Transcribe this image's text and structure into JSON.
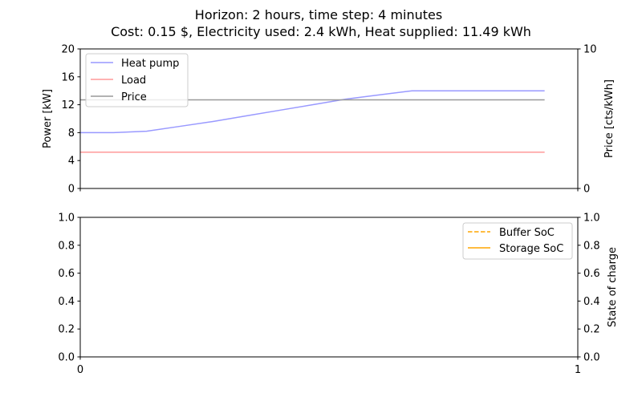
{
  "title_lines": [
    "Horizon: 2 hours, time step: 4 minutes",
    "Cost: 0.15 $, Electricity used: 2.4 kWh, Heat supplied: 11.49 kWh"
  ],
  "chart_data": [
    {
      "type": "line",
      "name": "power-panel",
      "ylabel": "Power [kW]",
      "y2label": "Price [cts/kWh]",
      "ylim": [
        0,
        20
      ],
      "y2lim": [
        0,
        10
      ],
      "xlim": [
        0,
        1
      ],
      "yticks": [
        "0",
        "4",
        "8",
        "12",
        "16",
        "20"
      ],
      "y2ticks": [
        "0",
        "10"
      ],
      "legend": {
        "placement": "upper-left",
        "entries": [
          "Heat pump",
          "Load",
          "Price"
        ]
      },
      "series": [
        {
          "name": "Heat pump",
          "color": "#9999ff",
          "axis": "left",
          "x": [
            0.0,
            0.0667,
            0.1333,
            0.2,
            0.2667,
            0.3333,
            0.4,
            0.4667,
            0.5333,
            0.6,
            0.6667,
            0.7333,
            0.8,
            0.8667,
            0.9333
          ],
          "values": [
            8.0,
            8.0,
            8.2,
            8.9,
            9.6,
            10.4,
            11.2,
            12.0,
            12.8,
            13.4,
            14.0,
            14.0,
            14.0,
            14.0,
            14.0
          ]
        },
        {
          "name": "Load",
          "color": "#ff9999",
          "axis": "left",
          "x": [
            0.0,
            0.9333
          ],
          "values": [
            5.2,
            5.2
          ]
        },
        {
          "name": "Price",
          "color": "#999999",
          "axis": "right",
          "x": [
            0.0,
            0.9333
          ],
          "values": [
            6.35,
            6.35
          ]
        }
      ]
    },
    {
      "type": "line",
      "name": "soc-panel",
      "ylabel": "",
      "y2label": "State of charge",
      "ylim": [
        0,
        1
      ],
      "y2lim": [
        0,
        1
      ],
      "xlim": [
        0,
        1
      ],
      "yticks": [
        "0.0",
        "0.2",
        "0.4",
        "0.6",
        "0.8",
        "1.0"
      ],
      "y2ticks": [
        "0.0",
        "0.2",
        "0.4",
        "0.6",
        "0.8",
        "1.0"
      ],
      "xticks": [
        "0",
        "1"
      ],
      "legend": {
        "placement": "upper-right",
        "entries": [
          "Buffer SoC",
          "Storage SoC"
        ]
      },
      "series": [
        {
          "name": "Buffer SoC",
          "color": "#ffa500",
          "style": "dashed",
          "x": [],
          "values": []
        },
        {
          "name": "Storage SoC",
          "color": "#ffa500",
          "style": "solid",
          "x": [],
          "values": []
        }
      ]
    }
  ]
}
